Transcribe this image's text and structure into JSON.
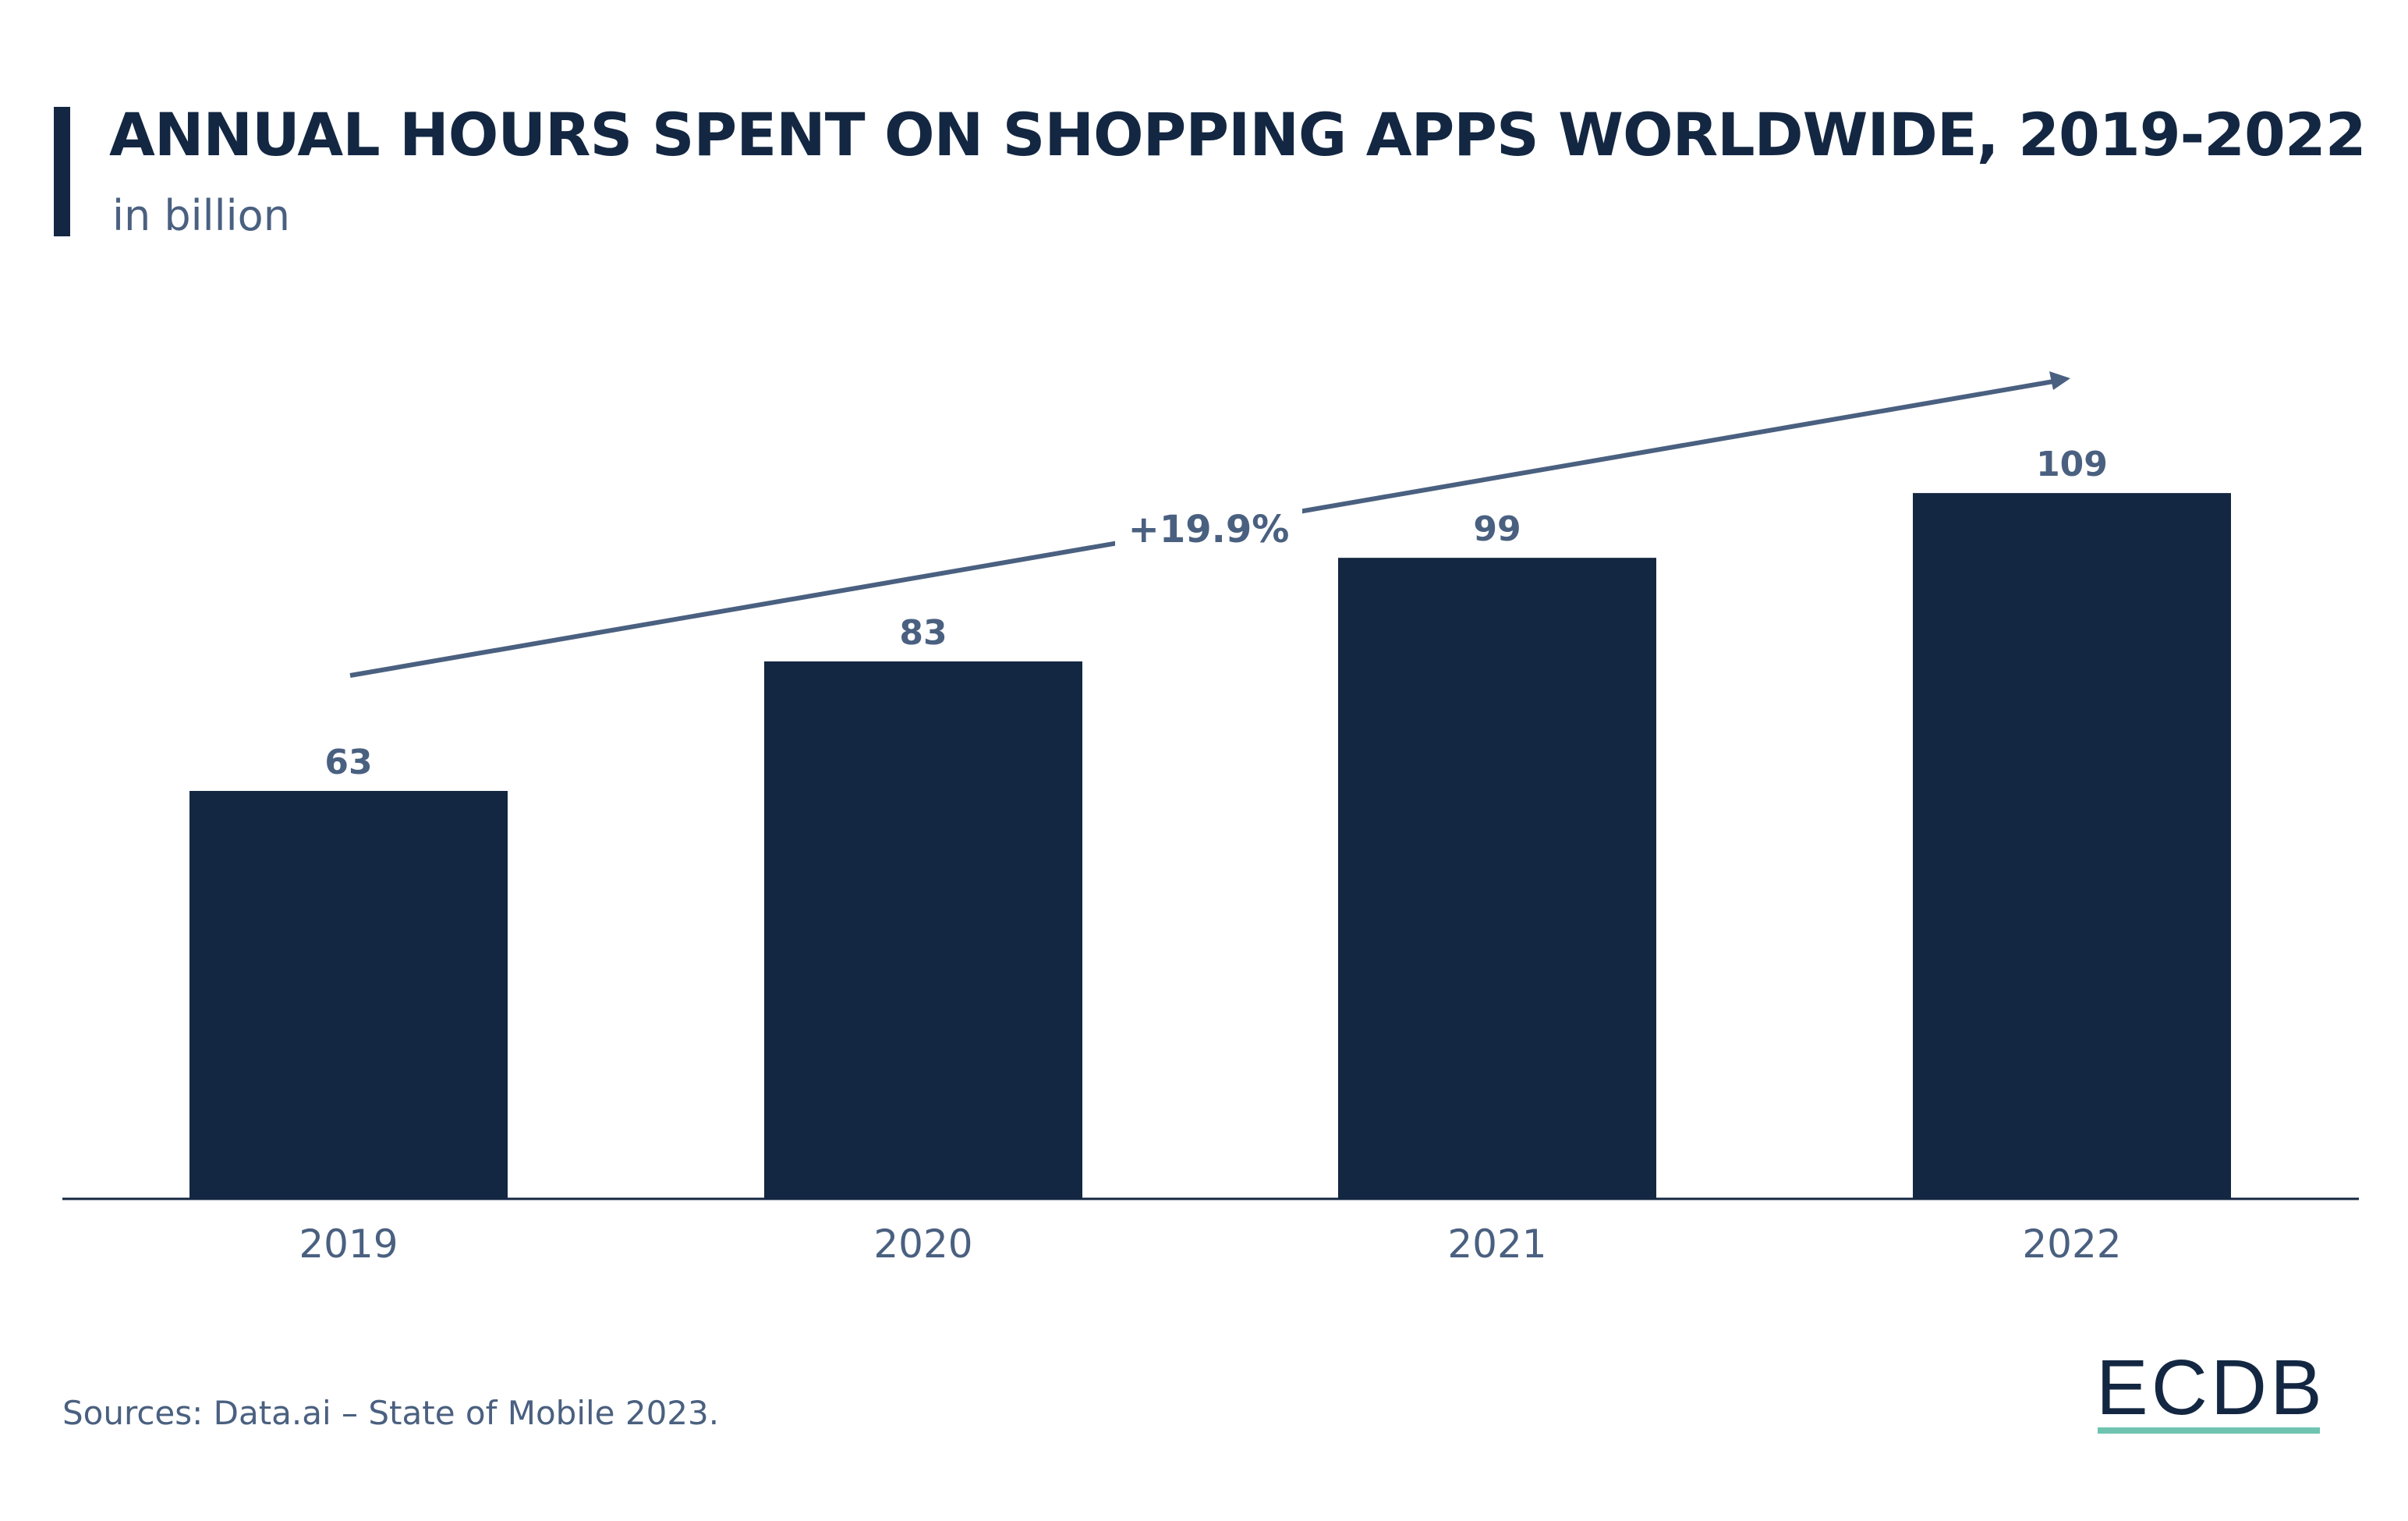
{
  "title": "ANNUAL HOURS SPENT ON SHOPPING APPS WORLDWIDE, 2019-2022",
  "subtitle": "in billion",
  "source": "Sources: Data.ai – State of Mobile 2023.",
  "logo": "ECDB",
  "colors": {
    "bar": "#132742",
    "label": "#4a6080",
    "arrow": "#4a6080",
    "logo_accent": "#6fc4b1"
  },
  "chart_data": {
    "type": "bar",
    "categories": [
      "2019",
      "2020",
      "2021",
      "2022"
    ],
    "values": [
      63,
      83,
      99,
      109
    ],
    "data_labels": [
      "63",
      "83",
      "99",
      "109"
    ],
    "annotation": "+19.9%",
    "ylim": [
      0,
      120
    ],
    "grid": false,
    "legend": "none"
  }
}
